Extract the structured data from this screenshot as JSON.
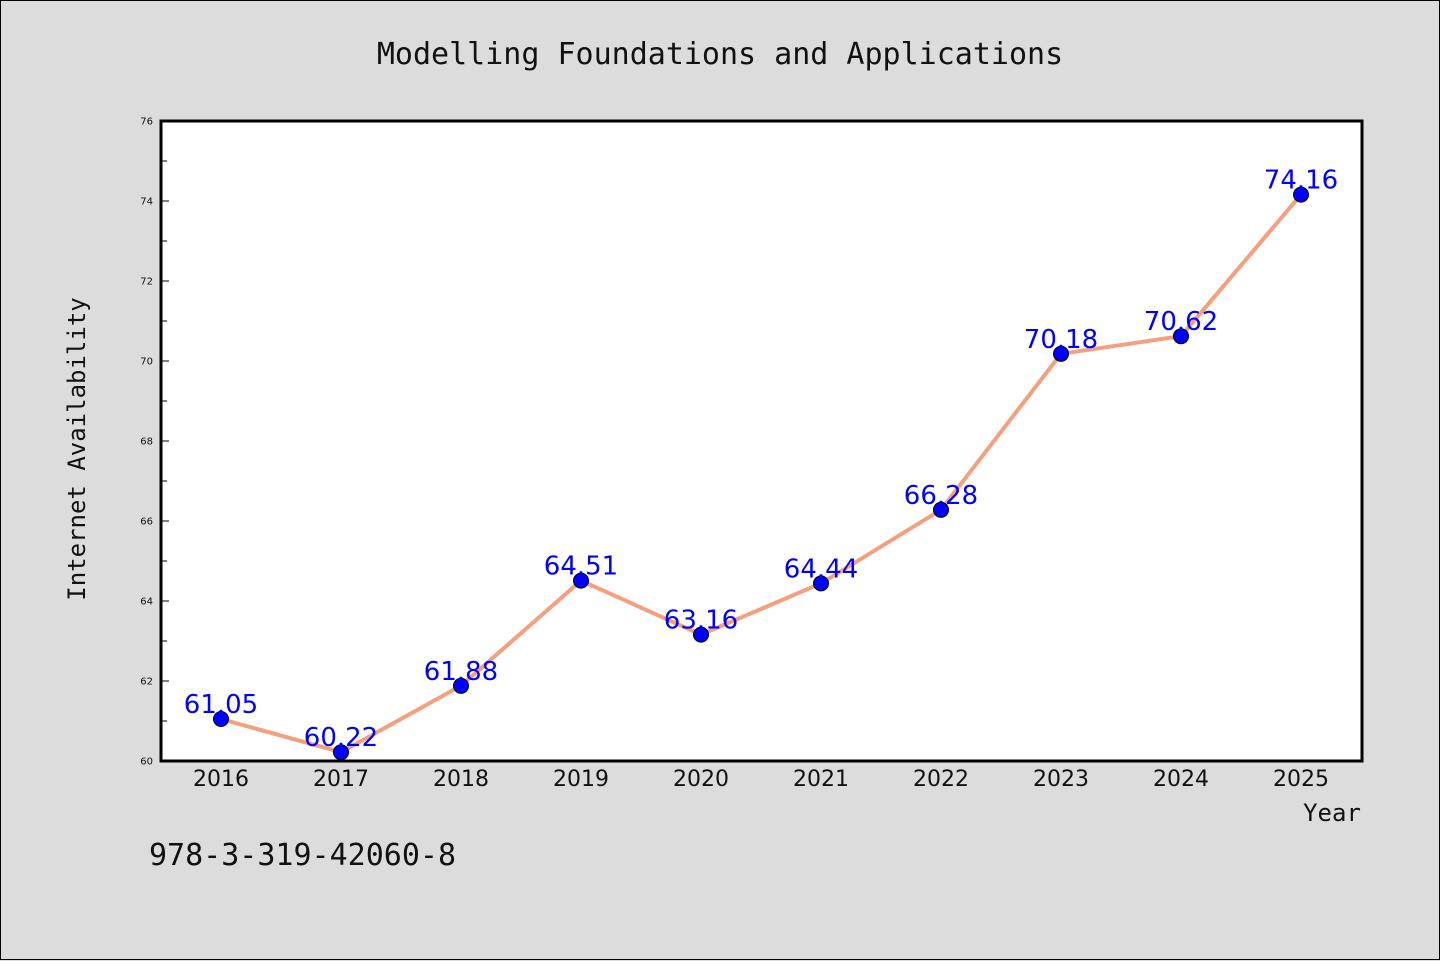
{
  "colors": {
    "background": "#dcdcdc",
    "plot_background": "#ffffff",
    "line": "#f4a07f",
    "marker": "#0000ff",
    "data_label": "#0000ff",
    "text": "#111111"
  },
  "footer": {
    "isbn": "978-3-319-42060-8"
  },
  "chart_data": {
    "type": "line",
    "title": "Modelling Foundations and Applications",
    "xlabel": "Year",
    "ylabel": "Internet Availability",
    "categories": [
      "2016",
      "2017",
      "2018",
      "2019",
      "2020",
      "2021",
      "2022",
      "2023",
      "2024",
      "2025"
    ],
    "series": [
      {
        "values": [
          61.05,
          60.22,
          61.88,
          64.51,
          63.16,
          64.44,
          66.28,
          70.18,
          70.62,
          74.16
        ],
        "data_labels": [
          "61.05",
          "60.22",
          "61.88",
          "64.51",
          "63.16",
          "64.44",
          "66.28",
          "70.18",
          "70.62",
          "74.16"
        ]
      }
    ],
    "ylim": [
      60,
      76
    ],
    "yticks": [
      60,
      62,
      64,
      66,
      68,
      70,
      72,
      74,
      76
    ],
    "ytick_labels": [
      "60",
      "62",
      "64",
      "66",
      "68",
      "70",
      "72",
      "74",
      "76"
    ],
    "grid": false,
    "legend": "none",
    "marker": "circle"
  }
}
